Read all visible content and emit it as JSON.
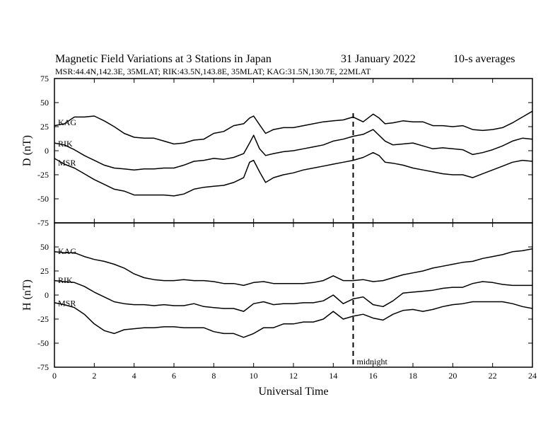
{
  "header": {
    "title": "Magnetic Field Variations at 3 Stations in Japan",
    "date": "31  January  2022",
    "averaging": "10-s averages",
    "stations_line": "MSR:44.4N,142.3E, 35MLAT;  RIK:43.5N,143.8E, 35MLAT;  KAG:31.5N,130.7E, 22MLAT"
  },
  "chart_data": [
    {
      "type": "line",
      "panel": "D",
      "ylabel": "D (nT)",
      "ylim": [
        -75,
        75
      ],
      "yticks": [
        -75,
        -50,
        -25,
        0,
        25,
        50,
        75
      ],
      "xlim": [
        0,
        24
      ],
      "grid": false,
      "series": [
        {
          "name": "KAG",
          "x": [
            0,
            0.5,
            1,
            1.5,
            2,
            2.5,
            3,
            3.5,
            4,
            4.5,
            5,
            5.5,
            6,
            6.5,
            7,
            7.5,
            8,
            8.5,
            9,
            9.5,
            9.8,
            10,
            10.3,
            10.6,
            11,
            11.5,
            12,
            12.5,
            13,
            13.5,
            14,
            14.5,
            15,
            15.5,
            16,
            16.3,
            16.6,
            17,
            17.5,
            18,
            18.5,
            19,
            19.5,
            20,
            20.5,
            21,
            21.5,
            22,
            22.5,
            23,
            23.5,
            24
          ],
          "y": [
            26,
            28,
            35,
            35,
            36,
            31,
            25,
            18,
            14,
            13,
            13,
            10,
            7,
            8,
            11,
            12,
            18,
            20,
            26,
            28,
            34,
            36,
            27,
            18,
            22,
            24,
            24,
            26,
            28,
            30,
            31,
            32,
            35,
            30,
            38,
            34,
            28,
            29,
            31,
            30,
            30,
            26,
            26,
            25,
            26,
            22,
            21,
            22,
            24,
            29,
            35,
            41
          ]
        },
        {
          "name": "RIK",
          "x": [
            0,
            0.5,
            1,
            1.5,
            2,
            2.5,
            3,
            3.5,
            4,
            4.5,
            5,
            5.5,
            6,
            6.5,
            7,
            7.5,
            8,
            8.5,
            9,
            9.5,
            9.8,
            10,
            10.3,
            10.6,
            11,
            11.5,
            12,
            12.5,
            13,
            13.5,
            14,
            14.5,
            15,
            15.5,
            16,
            16.3,
            16.6,
            17,
            17.5,
            18,
            18.5,
            19,
            19.5,
            20,
            20.5,
            21,
            21.5,
            22,
            22.5,
            23,
            23.5,
            24
          ],
          "y": [
            8,
            6,
            1,
            -5,
            -10,
            -15,
            -18,
            -19,
            -20,
            -19,
            -19,
            -18,
            -18,
            -15,
            -11,
            -10,
            -8,
            -9,
            -7,
            -3,
            8,
            16,
            2,
            -5,
            -3,
            -1,
            0,
            2,
            4,
            6,
            10,
            12,
            15,
            17,
            22,
            16,
            10,
            6,
            7,
            8,
            5,
            2,
            3,
            2,
            1,
            -4,
            -2,
            1,
            5,
            10,
            13,
            12
          ]
        },
        {
          "name": "MSR",
          "x": [
            0,
            0.5,
            1,
            1.5,
            2,
            2.5,
            3,
            3.5,
            4,
            4.5,
            5,
            5.5,
            6,
            6.5,
            7,
            7.5,
            8,
            8.5,
            9,
            9.5,
            9.8,
            10,
            10.3,
            10.6,
            11,
            11.5,
            12,
            12.5,
            13,
            13.5,
            14,
            14.5,
            15,
            15.5,
            16,
            16.3,
            16.6,
            17,
            17.5,
            18,
            18.5,
            19,
            19.5,
            20,
            20.5,
            21,
            21.5,
            22,
            22.5,
            23,
            23.5,
            24
          ],
          "y": [
            -8,
            -14,
            -18,
            -24,
            -30,
            -35,
            -40,
            -42,
            -46,
            -46,
            -46,
            -46,
            -47,
            -45,
            -40,
            -38,
            -37,
            -36,
            -33,
            -28,
            -12,
            -10,
            -22,
            -33,
            -28,
            -25,
            -23,
            -20,
            -18,
            -16,
            -14,
            -12,
            -10,
            -7,
            -2,
            -5,
            -12,
            -13,
            -15,
            -18,
            -20,
            -22,
            -24,
            -25,
            -25,
            -28,
            -24,
            -20,
            -16,
            -12,
            -10,
            -11
          ]
        }
      ]
    },
    {
      "type": "line",
      "panel": "H",
      "ylabel": "H (nT)",
      "xlabel": "Universal Time",
      "ylim": [
        -75,
        75
      ],
      "yticks": [
        -75,
        -50,
        -25,
        0,
        25,
        50,
        75
      ],
      "xlim": [
        0,
        24
      ],
      "xticks": [
        0,
        2,
        4,
        6,
        8,
        10,
        12,
        14,
        16,
        18,
        20,
        22,
        24
      ],
      "grid": false,
      "series": [
        {
          "name": "KAG",
          "x": [
            0,
            0.5,
            1,
            1.5,
            2,
            2.5,
            3,
            3.5,
            4,
            4.5,
            5,
            5.5,
            6,
            6.5,
            7,
            7.5,
            8,
            8.5,
            9,
            9.5,
            10,
            10.5,
            11,
            11.5,
            12,
            12.5,
            13,
            13.5,
            14,
            14.5,
            15,
            15.5,
            16,
            16.5,
            17,
            17.5,
            18,
            18.5,
            19,
            19.5,
            20,
            20.5,
            21,
            21.5,
            22,
            22.5,
            23,
            23.5,
            24
          ],
          "y": [
            45,
            44,
            44,
            40,
            37,
            35,
            32,
            28,
            22,
            18,
            16,
            15,
            15,
            16,
            15,
            15,
            14,
            12,
            12,
            10,
            13,
            14,
            12,
            12,
            12,
            12,
            13,
            15,
            20,
            15,
            15,
            16,
            14,
            15,
            18,
            21,
            23,
            25,
            28,
            30,
            32,
            34,
            35,
            38,
            40,
            42,
            45,
            46,
            48
          ]
        },
        {
          "name": "RIK",
          "x": [
            0,
            0.5,
            1,
            1.5,
            2,
            2.5,
            3,
            3.5,
            4,
            4.5,
            5,
            5.5,
            6,
            6.5,
            7,
            7.5,
            8,
            8.5,
            9,
            9.5,
            10,
            10.5,
            11,
            11.5,
            12,
            12.5,
            13,
            13.5,
            14,
            14.5,
            15,
            15.5,
            16,
            16.5,
            17,
            17.5,
            18,
            18.5,
            19,
            19.5,
            20,
            20.5,
            21,
            21.5,
            22,
            22.5,
            23,
            23.5,
            24
          ],
          "y": [
            15,
            14,
            13,
            9,
            3,
            -2,
            -7,
            -9,
            -10,
            -10,
            -11,
            -10,
            -11,
            -11,
            -9,
            -12,
            -13,
            -14,
            -14,
            -17,
            -9,
            -7,
            -10,
            -9,
            -9,
            -8,
            -8,
            -6,
            0,
            -9,
            -4,
            -2,
            -10,
            -12,
            -6,
            2,
            3,
            4,
            5,
            7,
            8,
            8,
            12,
            14,
            13,
            11,
            10,
            10,
            10
          ]
        },
        {
          "name": "MSR",
          "x": [
            0,
            0.5,
            1,
            1.5,
            2,
            2.5,
            3,
            3.5,
            4,
            4.5,
            5,
            5.5,
            6,
            6.5,
            7,
            7.5,
            8,
            8.5,
            9,
            9.5,
            10,
            10.5,
            11,
            11.5,
            12,
            12.5,
            13,
            13.5,
            14,
            14.5,
            15,
            15.5,
            16,
            16.5,
            17,
            17.5,
            18,
            18.5,
            19,
            19.5,
            20,
            20.5,
            21,
            21.5,
            22,
            22.5,
            23,
            23.5,
            24
          ],
          "y": [
            -8,
            -10,
            -13,
            -20,
            -30,
            -37,
            -40,
            -36,
            -35,
            -34,
            -34,
            -33,
            -33,
            -34,
            -34,
            -34,
            -38,
            -40,
            -40,
            -44,
            -40,
            -34,
            -34,
            -30,
            -30,
            -28,
            -28,
            -25,
            -17,
            -25,
            -22,
            -20,
            -24,
            -26,
            -20,
            -16,
            -15,
            -17,
            -15,
            -12,
            -10,
            -9,
            -7,
            -7,
            -7,
            -7,
            -9,
            -12,
            -14
          ]
        }
      ]
    }
  ],
  "annotations": {
    "midnight_label": "midnight",
    "midnight_x": 15
  }
}
